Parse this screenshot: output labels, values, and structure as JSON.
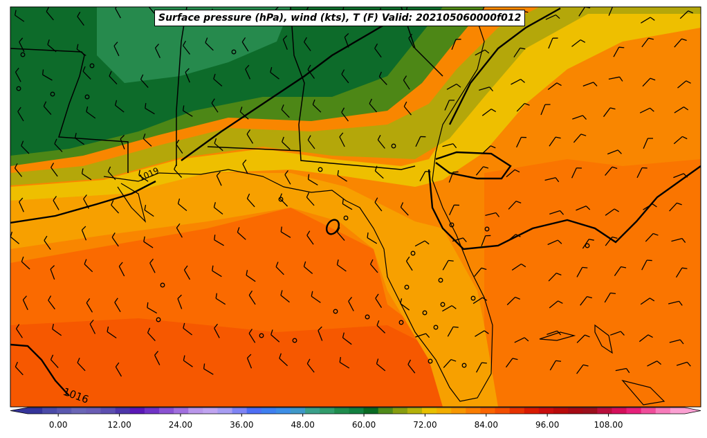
{
  "title": "Surface pressure (hPa), wind (kts), T (F) Valid: 202105060000f012",
  "isobar_labels": [
    "1016",
    "1019"
  ],
  "colorbar": {
    "tick_labels": [
      "0.00",
      "12.00",
      "24.00",
      "36.00",
      "48.00",
      "60.00",
      "72.00",
      "84.00",
      "96.00",
      "108.00"
    ],
    "tick_values": [
      0,
      12,
      24,
      36,
      48,
      60,
      72,
      84,
      96,
      108
    ],
    "min": -6,
    "max": 123,
    "step": 3,
    "colors": [
      "#35349a",
      "#4b4ba8",
      "#5b58af",
      "#6b66b6",
      "#6a5db4",
      "#5d4fb0",
      "#4d36a9",
      "#5a18b6",
      "#7033c6",
      "#8a52d2",
      "#a16fde",
      "#b996ea",
      "#c0a4f0",
      "#a79df2",
      "#7f84f4",
      "#4e6ef4",
      "#3f7ff0",
      "#3d8ee6",
      "#3f98c8",
      "#3aa08a",
      "#319c6b",
      "#1f8c4d",
      "#128040",
      "#0a6a23",
      "#4f8a1a",
      "#889d10",
      "#b4b10a",
      "#e8c000",
      "#f2ad00",
      "#f79700",
      "#fa7d00",
      "#fa6500",
      "#f34e00",
      "#e63200",
      "#d81a00",
      "#c90d0d",
      "#b80a0a",
      "#a50a14",
      "#9b0f1c",
      "#b80f3c",
      "#d40f5a",
      "#e6207a",
      "#f04c9a",
      "#f77bba",
      "#fba0d2"
    ]
  },
  "map": {
    "ocean_color": "#f88a00",
    "land_cold_color": "#0f6b2f"
  }
}
